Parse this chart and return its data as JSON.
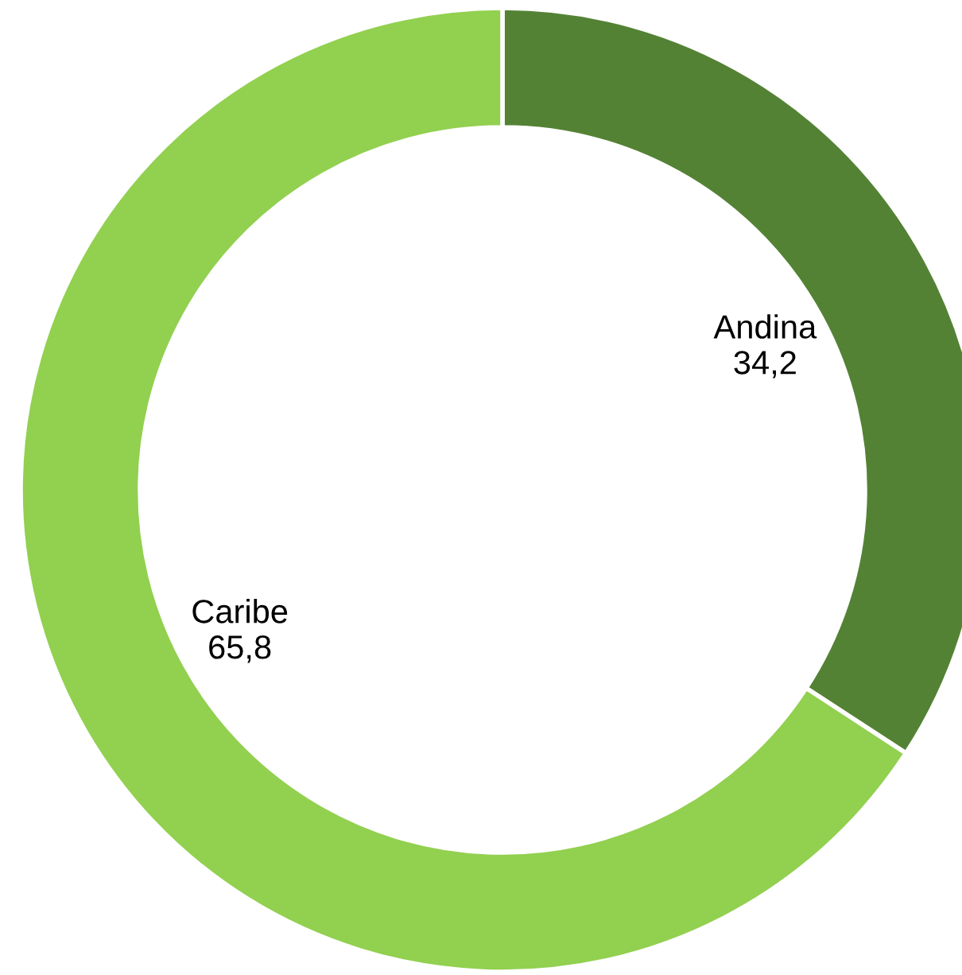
{
  "chart_data": {
    "type": "donut",
    "categories": [
      "Andina",
      "Caribe"
    ],
    "values": [
      34.2,
      65.8
    ],
    "colors": [
      "#548235",
      "#92d050"
    ],
    "value_labels": [
      "34,2",
      "65,8"
    ]
  }
}
